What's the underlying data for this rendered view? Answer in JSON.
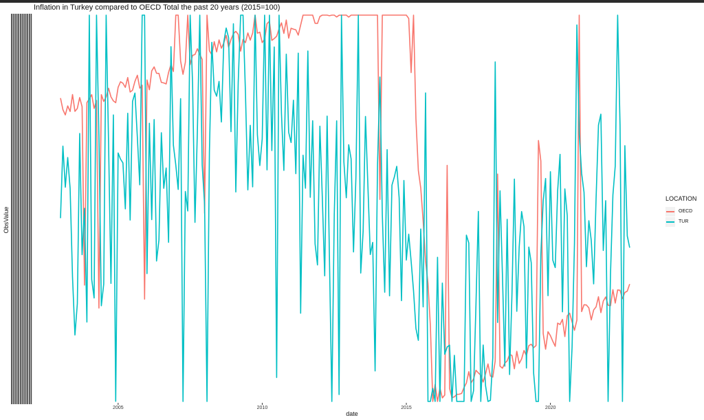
{
  "chart_data": {
    "type": "line",
    "title": "Inflation in Turkey compared to OECD Total the past 20 years (2015=100)",
    "xlabel": "date",
    "ylabel": "ObsValue",
    "x_ticks": [
      "2005",
      "2010",
      "2015",
      "2020"
    ],
    "xlim": [
      2003.0,
      2022.8
    ],
    "legend": {
      "title": "LOCATION",
      "position": "right"
    },
    "grid": false,
    "series": [
      {
        "name": "OECD",
        "color": "#F8766D",
        "points": [
          [
            2003.0,
            0.76
          ],
          [
            2005.0,
            0.8
          ],
          [
            2007.0,
            0.86
          ],
          [
            2008.0,
            0.9
          ],
          [
            2009.0,
            0.93
          ],
          [
            2010.0,
            0.95
          ],
          [
            2011.0,
            0.97
          ],
          [
            2012.0,
            1.0
          ],
          [
            2013.0,
            1.02
          ],
          [
            2014.0,
            1.04
          ],
          [
            2015.0,
            1.05
          ],
          [
            2016.0,
            0.02
          ],
          [
            2017.0,
            0.05
          ],
          [
            2018.0,
            0.09
          ],
          [
            2019.0,
            0.12
          ],
          [
            2020.0,
            0.16
          ],
          [
            2021.0,
            0.22
          ],
          [
            2022.8,
            0.29
          ]
        ]
      },
      {
        "name": "TUR",
        "color": "#00BFC4",
        "points": [
          [
            2003.0,
            0.39
          ],
          [
            2004.0,
            0.44
          ],
          [
            2005.0,
            0.52
          ],
          [
            2006.0,
            0.6
          ],
          [
            2007.0,
            0.66
          ],
          [
            2008.0,
            0.75
          ],
          [
            2009.0,
            0.8
          ],
          [
            2010.0,
            0.84
          ],
          [
            2011.0,
            0.88
          ],
          [
            2012.0,
            0.6
          ],
          [
            2013.0,
            0.5
          ],
          [
            2014.0,
            0.6
          ],
          [
            2015.0,
            0.3
          ],
          [
            2016.0,
            0.1
          ],
          [
            2017.0,
            0.18
          ],
          [
            2018.0,
            0.28
          ],
          [
            2019.0,
            0.33
          ],
          [
            2020.0,
            0.37
          ],
          [
            2021.0,
            0.42
          ],
          [
            2022.0,
            0.52
          ],
          [
            2022.8,
            0.55
          ]
        ]
      }
    ]
  }
}
